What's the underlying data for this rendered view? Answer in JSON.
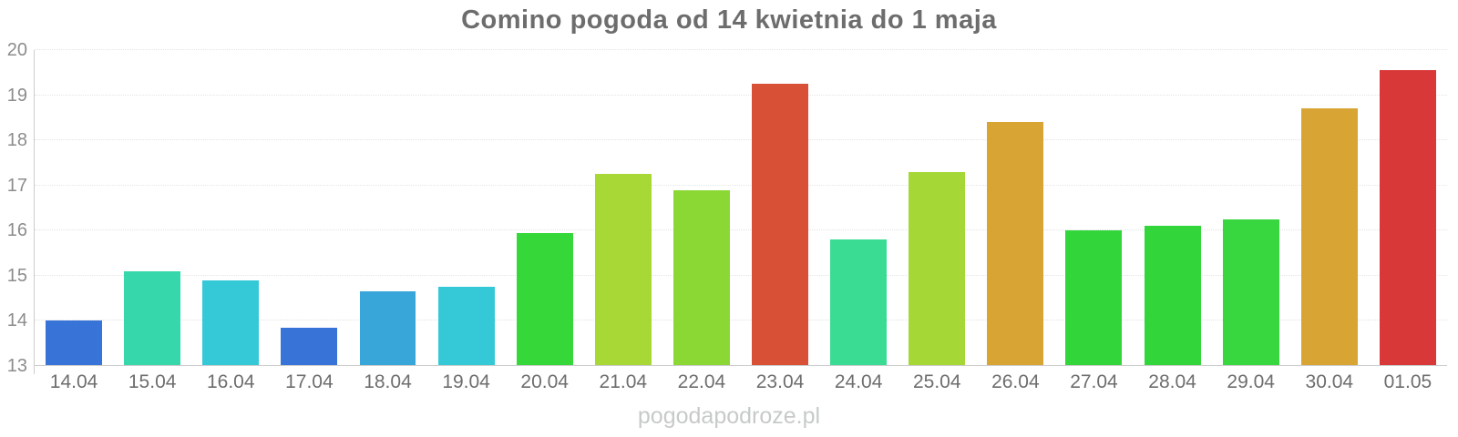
{
  "watermark": "pogodapodroze.pl",
  "chart_data": {
    "type": "bar",
    "title": "Comino pogoda od 14 kwietnia do 1 maja",
    "xlabel": "",
    "ylabel": "",
    "ylim": [
      13,
      20
    ],
    "y_ticks": [
      20,
      19,
      18,
      17,
      16,
      15,
      14,
      13
    ],
    "grid": true,
    "legend": false,
    "categories": [
      "14.04",
      "15.04",
      "16.04",
      "17.04",
      "18.04",
      "19.04",
      "20.04",
      "21.04",
      "22.04",
      "23.04",
      "24.04",
      "25.04",
      "26.04",
      "27.04",
      "28.04",
      "29.04",
      "30.04",
      "01.05"
    ],
    "values": [
      14.0,
      15.1,
      14.9,
      13.85,
      14.65,
      14.75,
      15.95,
      17.25,
      16.9,
      19.25,
      15.8,
      17.3,
      18.4,
      16.0,
      16.1,
      16.25,
      18.7,
      19.55
    ],
    "colors": [
      "#3873d8",
      "#36d8ab",
      "#35c9d8",
      "#3873d8",
      "#38a6d8",
      "#35c9d8",
      "#35d838",
      "#a8d835",
      "#8bd835",
      "#d85035",
      "#3adb92",
      "#a5d836",
      "#d8a535",
      "#32d63a",
      "#32d63a",
      "#38d73f",
      "#d8a535",
      "#d83838"
    ]
  }
}
